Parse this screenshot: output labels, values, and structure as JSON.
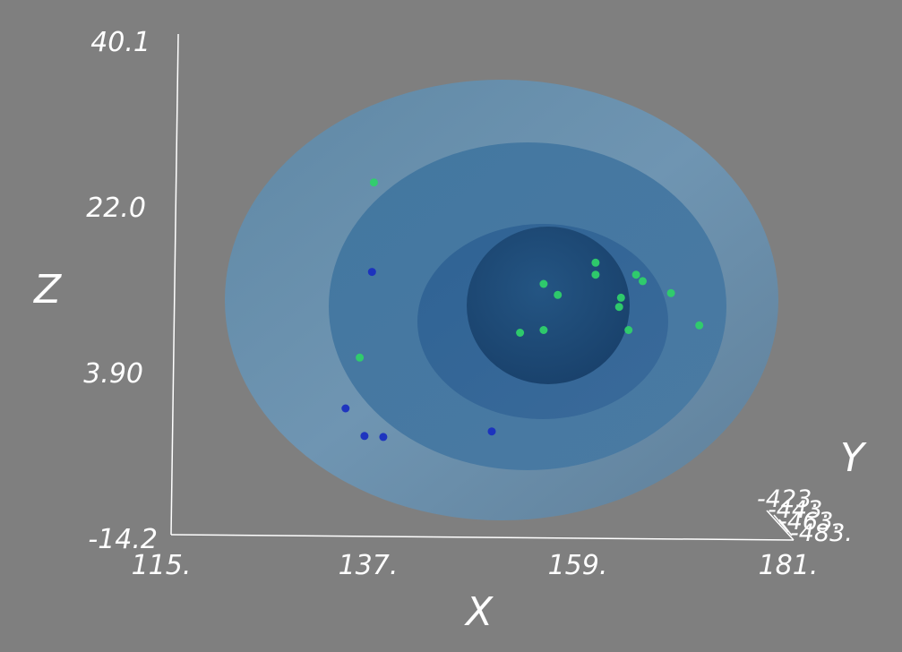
{
  "colors": {
    "background": "#7f7f7f",
    "axis": "#ffffff",
    "shell_outer": "#6a8faa",
    "shell_mid": "#4f7da3",
    "shell_inner": "#3b6a99",
    "shell_core": "#1f4a7a",
    "point_green": "#2fd06a",
    "point_blue": "#1a2fc0"
  },
  "chart_data": {
    "type": "scatter",
    "title": "",
    "xlabel": "X",
    "ylabel": "Y",
    "zlabel": "Z",
    "x_range": [
      115,
      181
    ],
    "z_range": [
      -14.2,
      40.1
    ],
    "x_ticks": [
      "115.",
      "137.",
      "159.",
      "181."
    ],
    "z_ticks": [
      "40.1",
      "22.0",
      "3.90",
      "-14.2"
    ],
    "y_ticks": [
      "-423.",
      "-443.",
      "-463.",
      "-483."
    ],
    "iso_shells": [
      {
        "name": "outer",
        "center": [
          158,
          13
        ],
        "radii": [
          29,
          25
        ]
      },
      {
        "name": "middle",
        "center": [
          162,
          13
        ],
        "radii": [
          21,
          18
        ]
      },
      {
        "name": "inner",
        "center": [
          163,
          12
        ],
        "radii": [
          13,
          11
        ]
      },
      {
        "name": "core",
        "center": [
          160,
          12
        ],
        "radii": [
          8.5,
          9
        ]
      }
    ],
    "series": [
      {
        "name": "green",
        "points": [
          {
            "x": 136.5,
            "z": 24.0
          },
          {
            "x": 135.0,
            "z": 5.0
          },
          {
            "x": 160.0,
            "z": 14.0
          },
          {
            "x": 164.3,
            "z": 14.0
          },
          {
            "x": 165.0,
            "z": 13.3
          },
          {
            "x": 168.0,
            "z": 12.0
          },
          {
            "x": 162.7,
            "z": 11.5
          },
          {
            "x": 162.5,
            "z": 10.5
          },
          {
            "x": 163.5,
            "z": 8.0
          },
          {
            "x": 171.0,
            "z": 8.5
          },
          {
            "x": 156.0,
            "z": 11.8
          },
          {
            "x": 154.5,
            "z": 8.0
          },
          {
            "x": 152.0,
            "z": 7.7
          },
          {
            "x": 160.0,
            "z": 15.3
          },
          {
            "x": 154.5,
            "z": 13.0
          }
        ]
      },
      {
        "name": "blue",
        "points": [
          {
            "x": 136.3,
            "z": 14.3
          },
          {
            "x": 133.5,
            "z": -0.5
          },
          {
            "x": 135.5,
            "z": -3.5
          },
          {
            "x": 137.5,
            "z": -3.6
          },
          {
            "x": 149.0,
            "z": -3.0
          }
        ]
      }
    ]
  }
}
